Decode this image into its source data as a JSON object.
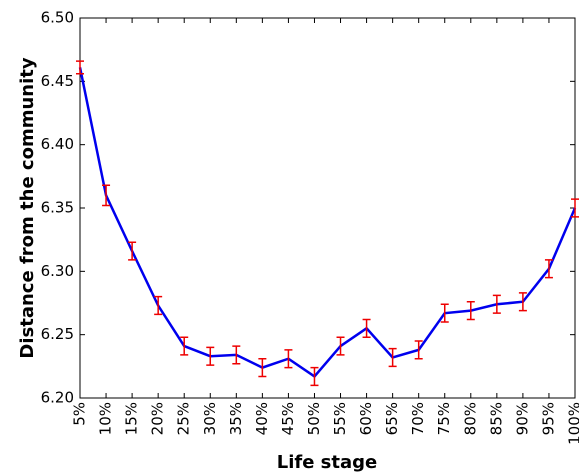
{
  "chart_data": {
    "type": "line",
    "x_label": "Life stage",
    "y_label": "Distance from the community",
    "categories": [
      "5%",
      "10%",
      "15%",
      "20%",
      "25%",
      "30%",
      "35%",
      "40%",
      "45%",
      "50%",
      "55%",
      "60%",
      "65%",
      "70%",
      "75%",
      "80%",
      "85%",
      "90%",
      "95%",
      "100%"
    ],
    "series": [
      {
        "color": "#0000ee",
        "error_color": "#ee0000",
        "values": [
          6.461,
          6.36,
          6.316,
          6.273,
          6.241,
          6.233,
          6.234,
          6.224,
          6.231,
          6.217,
          6.241,
          6.255,
          6.232,
          6.238,
          6.267,
          6.269,
          6.274,
          6.276,
          6.302,
          6.35
        ],
        "errors": [
          0.005,
          0.008,
          0.007,
          0.007,
          0.007,
          0.007,
          0.007,
          0.007,
          0.007,
          0.007,
          0.007,
          0.007,
          0.007,
          0.007,
          0.007,
          0.007,
          0.007,
          0.007,
          0.007,
          0.007
        ]
      }
    ],
    "ylim": [
      6.2,
      6.5
    ],
    "yticks": [
      {
        "value": 6.2,
        "label": "6.20"
      },
      6.25,
      {
        "value": 6.3,
        "label": "6.30"
      },
      6.35,
      {
        "value": 6.4,
        "label": "6.40"
      },
      6.45,
      {
        "value": 6.5,
        "label": "6.50"
      }
    ]
  }
}
